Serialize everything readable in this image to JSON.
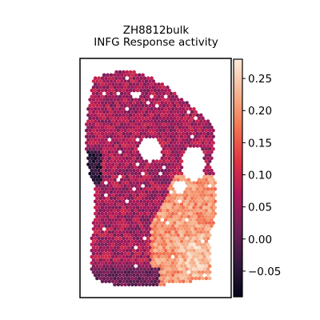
{
  "chart_data": {
    "type": "heatmap",
    "title": "ZH8812bulk",
    "subtitle": "INFG Response activity",
    "xlabel": "",
    "ylabel": "",
    "colorbar": {
      "ticks": [
        -0.05,
        0.0,
        0.05,
        0.1,
        0.15,
        0.2,
        0.25
      ],
      "tick_labels": [
        "−0.05",
        "0.00",
        "0.05",
        "0.10",
        "0.15",
        "0.20",
        "0.25"
      ],
      "range": [
        -0.09,
        0.28
      ],
      "colormap": "rocket",
      "colors": [
        "#03051a",
        "#35193e",
        "#701f57",
        "#ad1759",
        "#e13342",
        "#f37651",
        "#f6b48f",
        "#faebdd"
      ]
    },
    "grid": false,
    "legend": "none",
    "description_regions": {
      "tissue_background_mean": 0.06,
      "lower_right_region_mean": 0.2,
      "lower_right_peak": 0.27,
      "left_edge_min": -0.08
    }
  }
}
